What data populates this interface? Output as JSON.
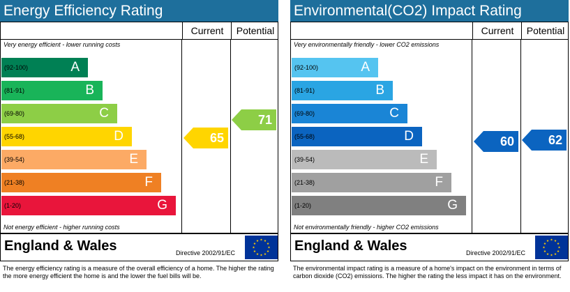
{
  "chart_data": [
    {
      "type": "bar",
      "title": "Energy Efficiency Rating",
      "column_headers": [
        "Current",
        "Potential"
      ],
      "top_caption": "Very energy efficient - lower running costs",
      "bottom_caption": "Not energy efficient - higher running costs",
      "bands": [
        {
          "letter": "A",
          "range": "(92-100)",
          "color": "#008054"
        },
        {
          "letter": "B",
          "range": "(81-91)",
          "color": "#19b459"
        },
        {
          "letter": "C",
          "range": "(69-80)",
          "color": "#8dce46"
        },
        {
          "letter": "D",
          "range": "(55-68)",
          "color": "#ffd500"
        },
        {
          "letter": "E",
          "range": "(39-54)",
          "color": "#fcaa65"
        },
        {
          "letter": "F",
          "range": "(21-38)",
          "color": "#ef8023"
        },
        {
          "letter": "G",
          "range": "(1-20)",
          "color": "#e9153b"
        }
      ],
      "current": {
        "value": 65,
        "band": "D",
        "color": "#ffd500"
      },
      "potential": {
        "value": 71,
        "band": "C",
        "color": "#8dce46"
      },
      "country": "England & Wales",
      "directive": "Directive 2002/91/EC",
      "description": "The energy efficiency rating is a measure of the overall efficiency of a home. The higher the rating the more energy efficient the home is and the lower the fuel bills will be."
    },
    {
      "type": "bar",
      "title": "Environmental(CO2) Impact Rating",
      "column_headers": [
        "Current",
        "Potential"
      ],
      "top_caption": "Very environmentally friendly - lower CO2 emissions",
      "bottom_caption": "Not environmentally friendly - higher CO2 emissions",
      "bands": [
        {
          "letter": "A",
          "range": "(92-100)",
          "color": "#55c4f0"
        },
        {
          "letter": "B",
          "range": "(81-91)",
          "color": "#2aa5e3"
        },
        {
          "letter": "C",
          "range": "(69-80)",
          "color": "#1a85d6"
        },
        {
          "letter": "D",
          "range": "(55-68)",
          "color": "#0b64c0"
        },
        {
          "letter": "E",
          "range": "(39-54)",
          "color": "#bbbbbb"
        },
        {
          "letter": "F",
          "range": "(21-38)",
          "color": "#a0a0a0"
        },
        {
          "letter": "G",
          "range": "(1-20)",
          "color": "#808080"
        }
      ],
      "current": {
        "value": 60,
        "band": "D",
        "color": "#0b64c0"
      },
      "potential": {
        "value": 62,
        "band": "D",
        "color": "#0b64c0"
      },
      "country": "England & Wales",
      "directive": "Directive 2002/91/EC",
      "description": "The environmental impact rating is a measure of a home's impact on the environment in terms of carbon dioxide (CO2) emissions. The higher the rating the less impact it has on the environment."
    }
  ]
}
